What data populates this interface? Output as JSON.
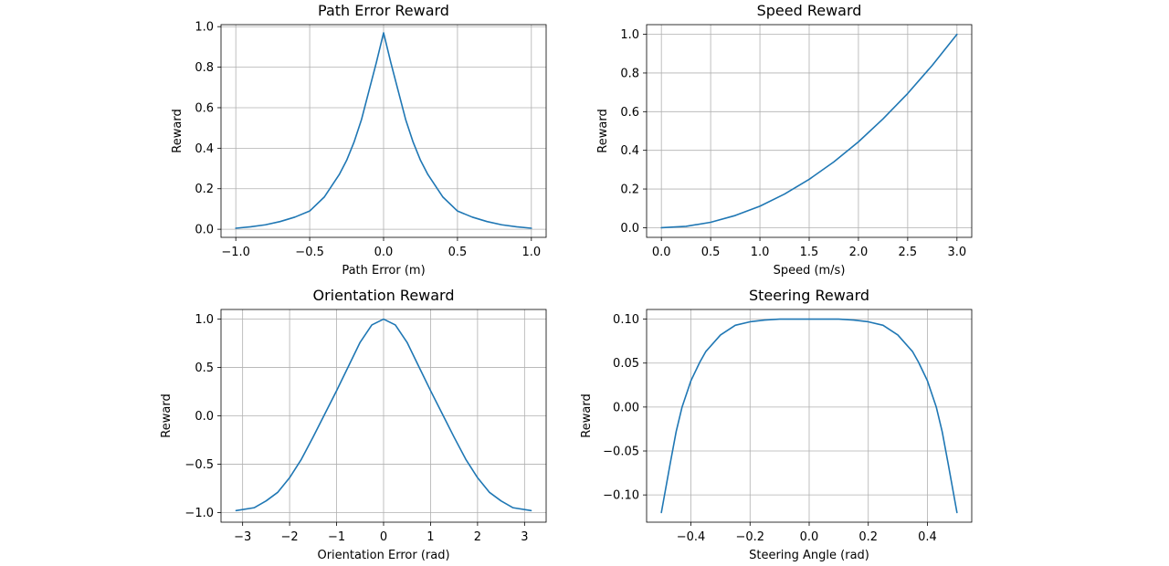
{
  "chart_data": [
    {
      "type": "line",
      "title": "Path Error Reward",
      "xlabel": "Path Error (m)",
      "ylabel": "Reward",
      "xlim": [
        -1.1,
        1.1
      ],
      "ylim": [
        -0.04,
        1.01
      ],
      "grid": true,
      "xticks": [
        -1.0,
        -0.5,
        0.0,
        0.5,
        1.0
      ],
      "xtick_labels": [
        "−1.0",
        "−0.5",
        "0.0",
        "0.5",
        "1.0"
      ],
      "yticks": [
        0.0,
        0.2,
        0.4,
        0.6,
        0.8,
        1.0
      ],
      "ytick_labels": [
        "0.0",
        "0.2",
        "0.4",
        "0.6",
        "0.8",
        "1.0"
      ],
      "series": [
        {
          "color": "#1f77b4",
          "x": [
            -1.0,
            -0.9,
            -0.8,
            -0.7,
            -0.6,
            -0.5,
            -0.4,
            -0.3,
            -0.25,
            -0.2,
            -0.15,
            -0.1,
            -0.05,
            0.0,
            0.05,
            0.1,
            0.15,
            0.2,
            0.25,
            0.3,
            0.4,
            0.5,
            0.6,
            0.7,
            0.8,
            0.9,
            1.0
          ],
          "y": [
            0.005,
            0.012,
            0.022,
            0.038,
            0.06,
            0.09,
            0.16,
            0.27,
            0.34,
            0.43,
            0.54,
            0.68,
            0.82,
            0.97,
            0.82,
            0.68,
            0.54,
            0.43,
            0.34,
            0.27,
            0.16,
            0.09,
            0.06,
            0.038,
            0.022,
            0.012,
            0.005
          ]
        }
      ]
    },
    {
      "type": "line",
      "title": "Speed Reward",
      "xlabel": "Speed (m/s)",
      "ylabel": "Reward",
      "xlim": [
        -0.15,
        3.15
      ],
      "ylim": [
        -0.05,
        1.05
      ],
      "grid": true,
      "xticks": [
        0.0,
        0.5,
        1.0,
        1.5,
        2.0,
        2.5,
        3.0
      ],
      "xtick_labels": [
        "0.0",
        "0.5",
        "1.0",
        "1.5",
        "2.0",
        "2.5",
        "3.0"
      ],
      "yticks": [
        0.0,
        0.2,
        0.4,
        0.6,
        0.8,
        1.0
      ],
      "ytick_labels": [
        "0.0",
        "0.2",
        "0.4",
        "0.6",
        "0.8",
        "1.0"
      ],
      "series": [
        {
          "color": "#1f77b4",
          "x": [
            0.0,
            0.25,
            0.5,
            0.75,
            1.0,
            1.25,
            1.5,
            1.75,
            2.0,
            2.25,
            2.5,
            2.75,
            3.0
          ],
          "y": [
            0.0,
            0.007,
            0.028,
            0.063,
            0.111,
            0.174,
            0.25,
            0.34,
            0.444,
            0.563,
            0.694,
            0.84,
            1.0
          ]
        }
      ]
    },
    {
      "type": "line",
      "title": "Orientation Reward",
      "xlabel": "Orientation Error (rad)",
      "ylabel": "Reward",
      "xlim": [
        -3.46,
        3.46
      ],
      "ylim": [
        -1.1,
        1.1
      ],
      "grid": true,
      "xticks": [
        -3,
        -2,
        -1,
        0,
        1,
        2,
        3
      ],
      "xtick_labels": [
        "−3",
        "−2",
        "−1",
        "0",
        "1",
        "2",
        "3"
      ],
      "yticks": [
        -1.0,
        -0.5,
        0.0,
        0.5,
        1.0
      ],
      "ytick_labels": [
        "−1.0",
        "−0.5",
        "0.0",
        "0.5",
        "1.0"
      ],
      "series": [
        {
          "color": "#1f77b4",
          "x": [
            -3.14,
            -2.75,
            -2.5,
            -2.25,
            -2.0,
            -1.75,
            -1.5,
            -1.25,
            -1.0,
            -0.75,
            -0.5,
            -0.25,
            0.0,
            0.25,
            0.5,
            0.75,
            1.0,
            1.25,
            1.5,
            1.75,
            2.0,
            2.25,
            2.5,
            2.75,
            3.14
          ],
          "y": [
            -0.98,
            -0.95,
            -0.88,
            -0.79,
            -0.64,
            -0.45,
            -0.22,
            0.02,
            0.26,
            0.51,
            0.76,
            0.94,
            1.0,
            0.94,
            0.76,
            0.51,
            0.26,
            0.02,
            -0.22,
            -0.45,
            -0.64,
            -0.79,
            -0.88,
            -0.95,
            -0.98
          ]
        }
      ]
    },
    {
      "type": "line",
      "title": "Steering Reward",
      "xlabel": "Steering Angle (rad)",
      "ylabel": "Reward",
      "xlim": [
        -0.55,
        0.55
      ],
      "ylim": [
        -0.131,
        0.111
      ],
      "grid": true,
      "xticks": [
        -0.4,
        -0.2,
        0.0,
        0.2,
        0.4
      ],
      "xtick_labels": [
        "−0.4",
        "−0.2",
        "0.0",
        "0.2",
        "0.4"
      ],
      "yticks": [
        -0.1,
        -0.05,
        0.0,
        0.05,
        0.1
      ],
      "ytick_labels": [
        "−0.10",
        "−0.05",
        "0.00",
        "0.05",
        "0.10"
      ],
      "series": [
        {
          "color": "#1f77b4",
          "x": [
            -0.5,
            -0.47,
            -0.45,
            -0.43,
            -0.4,
            -0.37,
            -0.35,
            -0.3,
            -0.25,
            -0.2,
            -0.15,
            -0.1,
            0.0,
            0.1,
            0.15,
            0.2,
            0.25,
            0.3,
            0.35,
            0.37,
            0.4,
            0.43,
            0.45,
            0.47,
            0.5
          ],
          "y": [
            -0.12,
            -0.064,
            -0.028,
            0.0,
            0.03,
            0.051,
            0.063,
            0.082,
            0.093,
            0.097,
            0.099,
            0.1,
            0.1,
            0.1,
            0.099,
            0.097,
            0.093,
            0.082,
            0.063,
            0.051,
            0.03,
            0.0,
            -0.028,
            -0.064,
            -0.12
          ]
        }
      ]
    }
  ]
}
